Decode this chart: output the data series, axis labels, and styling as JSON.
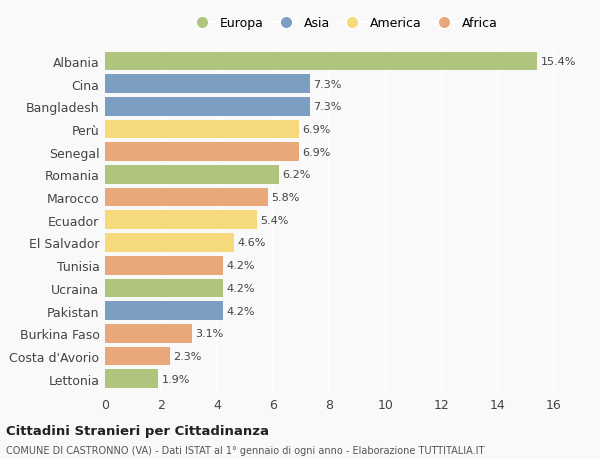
{
  "categories": [
    "Albania",
    "Cina",
    "Bangladesh",
    "Perù",
    "Senegal",
    "Romania",
    "Marocco",
    "Ecuador",
    "El Salvador",
    "Tunisia",
    "Ucraina",
    "Pakistan",
    "Burkina Faso",
    "Costa d'Avorio",
    "Lettonia"
  ],
  "values": [
    15.4,
    7.3,
    7.3,
    6.9,
    6.9,
    6.2,
    5.8,
    5.4,
    4.6,
    4.2,
    4.2,
    4.2,
    3.1,
    2.3,
    1.9
  ],
  "continents": [
    "Europa",
    "Asia",
    "Asia",
    "America",
    "Africa",
    "Europa",
    "Africa",
    "America",
    "America",
    "Africa",
    "Europa",
    "Asia",
    "Africa",
    "Africa",
    "Europa"
  ],
  "colors": {
    "Europa": "#afc47d",
    "Asia": "#7b9ec2",
    "America": "#f5d97a",
    "Africa": "#e8a87c"
  },
  "legend_order": [
    "Europa",
    "Asia",
    "America",
    "Africa"
  ],
  "xlim": [
    0,
    17
  ],
  "xticks": [
    0,
    2,
    4,
    6,
    8,
    10,
    12,
    14,
    16
  ],
  "title": "Cittadini Stranieri per Cittadinanza",
  "subtitle": "COMUNE DI CASTRONNO (VA) - Dati ISTAT al 1° gennaio di ogni anno - Elaborazione TUTTITALIA.IT",
  "background_color": "#f9f9f9",
  "bar_height": 0.82,
  "label_fontsize": 8,
  "ytick_fontsize": 9,
  "xtick_fontsize": 9
}
